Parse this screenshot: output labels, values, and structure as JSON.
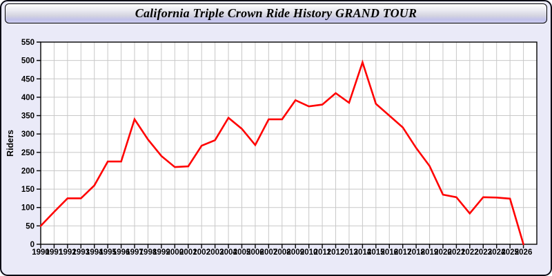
{
  "header": {
    "title": "California Triple Crown Ride History GRAND TOUR"
  },
  "chart_data": {
    "type": "line",
    "title": "California Triple Crown Ride History GRAND TOUR",
    "xlabel": "",
    "ylabel": "Riders",
    "x": [
      1990,
      1991,
      1992,
      1993,
      1994,
      1995,
      1996,
      1997,
      1998,
      1999,
      2000,
      2001,
      2002,
      2003,
      2004,
      2005,
      2006,
      2007,
      2008,
      2009,
      2010,
      2011,
      2012,
      2013,
      2014,
      2015,
      2016,
      2017,
      2018,
      2019,
      2020,
      2021,
      2022,
      2023,
      2024,
      2025,
      2026
    ],
    "series": [
      {
        "name": "Riders",
        "values": [
          50,
          88,
          125,
          125,
          160,
          225,
          225,
          340,
          285,
          240,
          210,
          212,
          268,
          283,
          344,
          314,
          270,
          340,
          340,
          392,
          375,
          380,
          411,
          385,
          495,
          382,
          350,
          318,
          262,
          213,
          135,
          128,
          84,
          128,
          127,
          124,
          0
        ]
      }
    ],
    "ylim": [
      0,
      550
    ],
    "ytick_step": 50,
    "xlim": [
      1990,
      2027
    ],
    "grid": true,
    "legend_position": "none",
    "colors": {
      "line": "#ff0000",
      "plot_background": "#ffffff",
      "page_background": "#eaeaf8",
      "grid": "#c8c8c8",
      "axis": "#000000",
      "text": "#000000"
    }
  }
}
